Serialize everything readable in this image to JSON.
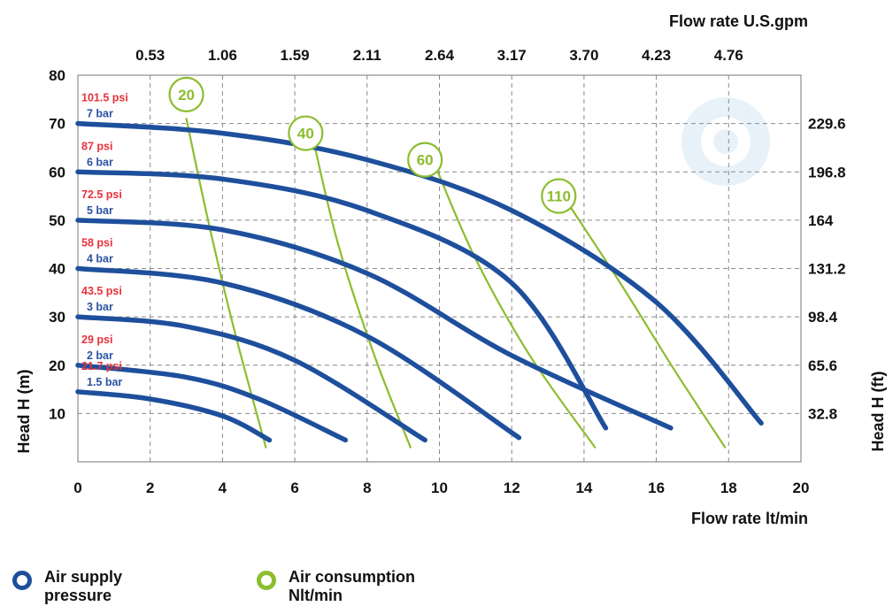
{
  "chart_data": {
    "type": "line",
    "title": "",
    "xlabel": "Flow rate  lt/min",
    "ylabel": "Head H (m)",
    "x2label": "Flow rate U.S.gpm",
    "y2label": "Head H (ft)",
    "xlim": [
      0,
      20
    ],
    "ylim": [
      0,
      80
    ],
    "xticks": [
      "0",
      "2",
      "4",
      "6",
      "8",
      "10",
      "12",
      "14",
      "16",
      "18",
      "20"
    ],
    "yticks": [
      "10",
      "20",
      "30",
      "40",
      "50",
      "60",
      "70",
      "80"
    ],
    "x2ticks": [
      {
        "x": 2.0,
        "label": "0.53"
      },
      {
        "x": 4.0,
        "label": "1.06"
      },
      {
        "x": 6.0,
        "label": "1.59"
      },
      {
        "x": 8.0,
        "label": "2.11"
      },
      {
        "x": 10.0,
        "label": "2.64"
      },
      {
        "x": 12.0,
        "label": "3.17"
      },
      {
        "x": 14.0,
        "label": "3.70"
      },
      {
        "x": 16.0,
        "label": "4.23"
      },
      {
        "x": 18.0,
        "label": "4.76"
      }
    ],
    "y2ticks": [
      {
        "y": 10,
        "label": "32.8"
      },
      {
        "y": 20,
        "label": "65.6"
      },
      {
        "y": 30,
        "label": "98.4"
      },
      {
        "y": 40,
        "label": "131.2"
      },
      {
        "y": 50,
        "label": "164"
      },
      {
        "y": 60,
        "label": "196.8"
      },
      {
        "y": 70,
        "label": "229.6"
      }
    ],
    "grid": true,
    "pressure_series": [
      {
        "name": "7 bar",
        "psi": "101.5 psi",
        "points": [
          [
            0,
            70
          ],
          [
            4,
            68
          ],
          [
            8,
            62.5
          ],
          [
            12,
            52
          ],
          [
            16,
            33
          ],
          [
            18.9,
            8
          ]
        ]
      },
      {
        "name": "6 bar",
        "psi": "87 psi",
        "points": [
          [
            0,
            60
          ],
          [
            4,
            58.5
          ],
          [
            8,
            52
          ],
          [
            12,
            37
          ],
          [
            14.6,
            7
          ]
        ]
      },
      {
        "name": "5 bar",
        "psi": "72.5 psi",
        "points": [
          [
            0,
            50
          ],
          [
            4,
            48
          ],
          [
            8,
            39
          ],
          [
            12,
            22
          ],
          [
            16.4,
            7
          ]
        ]
      },
      {
        "name": "4 bar",
        "psi": "58 psi",
        "points": [
          [
            0,
            40
          ],
          [
            4,
            37
          ],
          [
            8,
            26
          ],
          [
            12.2,
            5
          ]
        ]
      },
      {
        "name": "3 bar",
        "psi": "43.5 psi",
        "points": [
          [
            0,
            30
          ],
          [
            3,
            28
          ],
          [
            6,
            21
          ],
          [
            9.6,
            4.5
          ]
        ]
      },
      {
        "name": "2 bar",
        "psi": "29 psi",
        "points": [
          [
            0,
            20
          ],
          [
            3,
            17.5
          ],
          [
            5,
            13
          ],
          [
            7.4,
            4.5
          ]
        ]
      },
      {
        "name": "1.5 bar",
        "psi": "21.7 psi",
        "points": [
          [
            0,
            14.5
          ],
          [
            2,
            13
          ],
          [
            4,
            9.5
          ],
          [
            5.3,
            4.5
          ]
        ]
      }
    ],
    "consumption_series": [
      {
        "name": "20",
        "points": [
          [
            3.0,
            71
          ],
          [
            3.6,
            50
          ],
          [
            4.3,
            28
          ],
          [
            5.2,
            3
          ]
        ]
      },
      {
        "name": "40",
        "points": [
          [
            6.5,
            67
          ],
          [
            7.2,
            45
          ],
          [
            8.2,
            22
          ],
          [
            9.2,
            3
          ]
        ]
      },
      {
        "name": "60",
        "points": [
          [
            9.9,
            61
          ],
          [
            11.0,
            42
          ],
          [
            12.5,
            22
          ],
          [
            14.3,
            3
          ]
        ]
      },
      {
        "name": "110",
        "points": [
          [
            13.6,
            53
          ],
          [
            15.0,
            37
          ],
          [
            16.5,
            19
          ],
          [
            17.9,
            3
          ]
        ]
      }
    ],
    "consumption_labels": [
      {
        "text": "20",
        "x": 3.0,
        "y": 76
      },
      {
        "text": "40",
        "x": 6.3,
        "y": 68
      },
      {
        "text": "60",
        "x": 9.6,
        "y": 62.5
      },
      {
        "text": "110",
        "x": 13.3,
        "y": 55
      }
    ],
    "pressure_colors": "#1e4f9c",
    "consumption_color": "#8cbd2e",
    "legend": [
      {
        "label": "Air supply\npressure",
        "color": "#1e4f9c"
      },
      {
        "label": "Air consumption\nNlt/min",
        "color": "#8cbd2e"
      }
    ]
  }
}
